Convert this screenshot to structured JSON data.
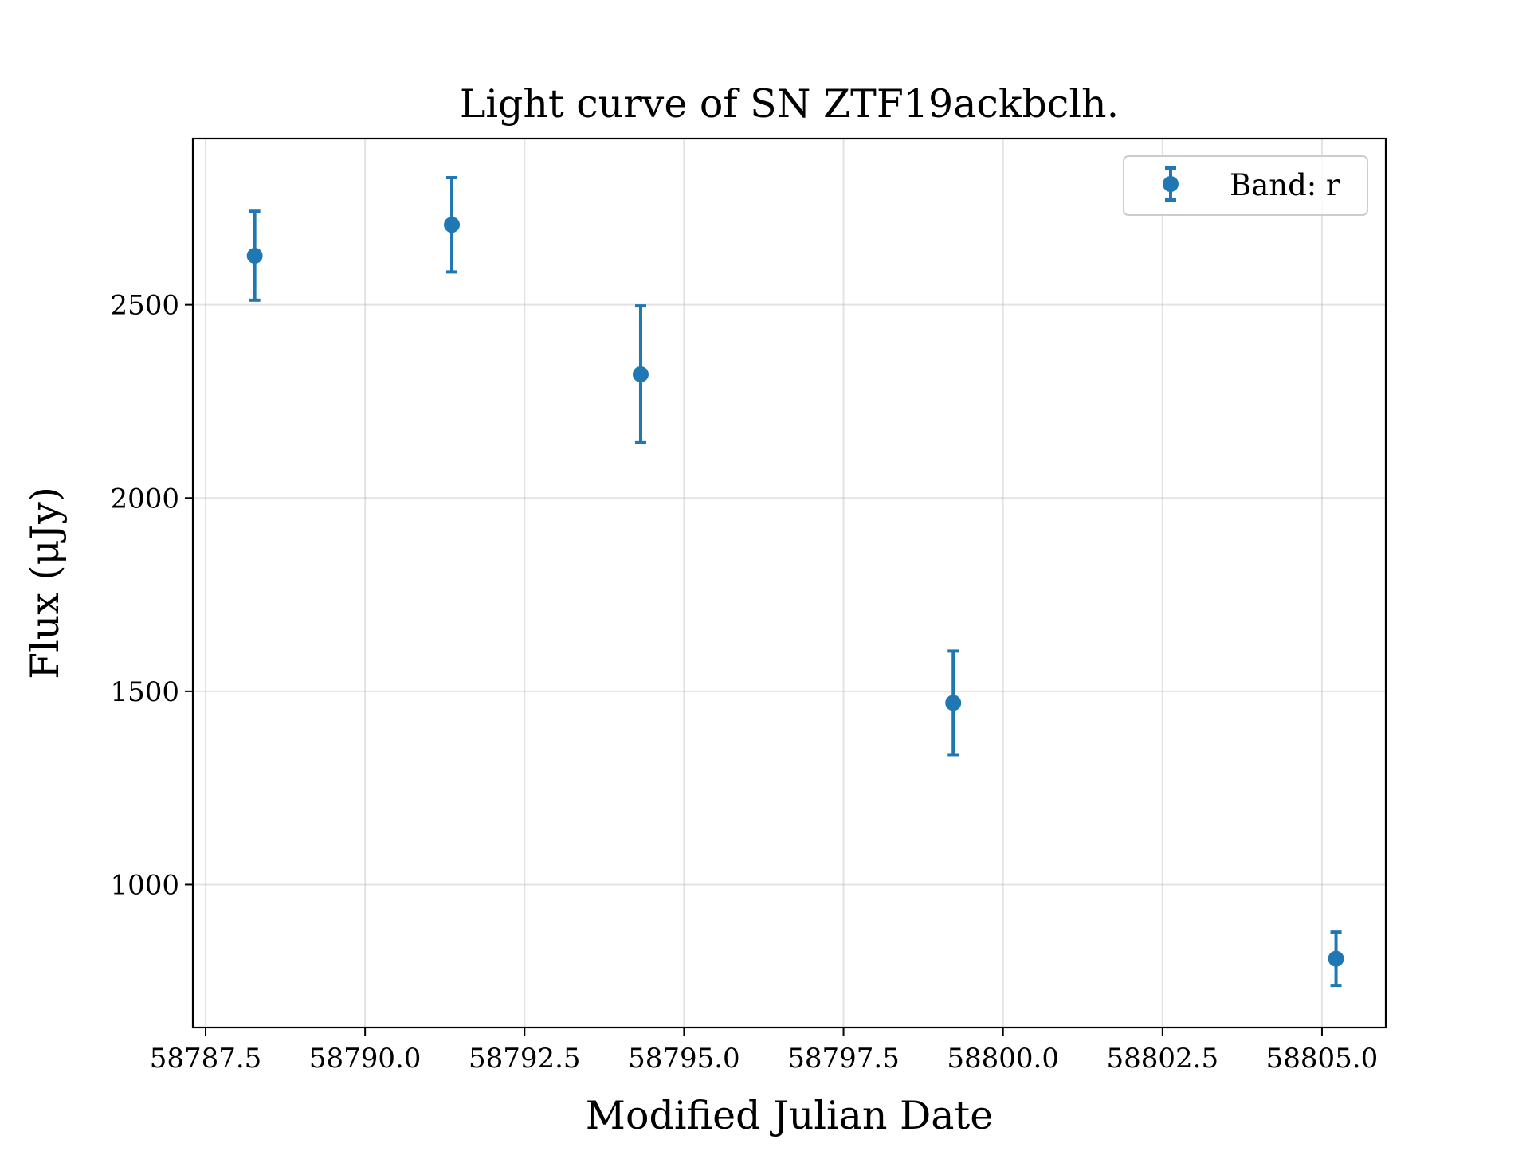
{
  "chart_data": {
    "type": "scatter",
    "title": "Light curve of SN ZTF19ackbclh.",
    "xlabel": "Modified Julian Date",
    "ylabel": "Flux (μJy)",
    "xlim": [
      58787.3,
      58806.0
    ],
    "ylim": [
      630,
      2930
    ],
    "x_ticks": [
      58787.5,
      58790.0,
      58792.5,
      58795.0,
      58797.5,
      58800.0,
      58802.5,
      58805.0
    ],
    "x_tick_labels": [
      "58787.5",
      "58790.0",
      "58792.5",
      "58795.0",
      "58797.5",
      "58800.0",
      "58802.5",
      "58805.0"
    ],
    "y_ticks": [
      1000,
      1500,
      2000,
      2500
    ],
    "y_tick_labels": [
      "1000",
      "1500",
      "2000",
      "2500"
    ],
    "grid": true,
    "legend_position": "top-right",
    "series": [
      {
        "name": "Band: r",
        "color": "#1f77b4",
        "marker": "circle",
        "error_bars": true,
        "points": [
          {
            "x": 58788.27,
            "y": 2627,
            "err": 115
          },
          {
            "x": 58791.36,
            "y": 2707,
            "err": 122
          },
          {
            "x": 58794.32,
            "y": 2320,
            "err": 177
          },
          {
            "x": 58799.22,
            "y": 1470,
            "err": 134
          },
          {
            "x": 58805.22,
            "y": 808,
            "err": 69
          }
        ]
      }
    ]
  }
}
